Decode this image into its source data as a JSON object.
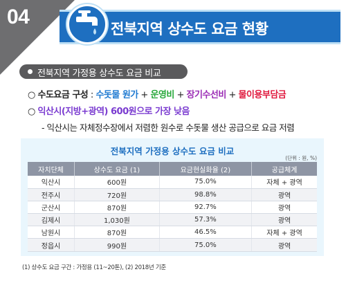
{
  "corner": {
    "number": "04"
  },
  "banner": {
    "title": "전북지역 상수도 요금 현황"
  },
  "section": {
    "label": "전북지역 가정용 상수도 요금 비교"
  },
  "bullet1": {
    "marker": "○",
    "lead": "수도요금 구성",
    "colon": " : ",
    "part1": "수돗물 원가",
    "plus1": " + ",
    "part2": "운영비",
    "plus2": " + ",
    "part3": "장기수선비",
    "plus3": " + ",
    "part4": "물이용부담금"
  },
  "bullet2": {
    "marker": "○",
    "text": "익산시(지방+광역) 600원으로 가장 낮음"
  },
  "sub": {
    "text": "- 익산시는 자체정수장에서 저렴한 원수로 수돗물 생산 공급으로 요금 저렴"
  },
  "table": {
    "title": "전북지역 가정용 상수도 요금 비교",
    "unit": "(단위 : 원, %)",
    "headers": [
      "자치단체",
      "상수도 요금 (1)",
      "요금현실화율 (2)",
      "공급체계"
    ],
    "rows": [
      [
        "익산시",
        "600원",
        "75.0%",
        "자체 + 광역"
      ],
      [
        "전주시",
        "720원",
        "98.8%",
        "광역"
      ],
      [
        "군산시",
        "870원",
        "92.7%",
        "광역"
      ],
      [
        "김제시",
        "1,030원",
        "57.3%",
        "광역"
      ],
      [
        "남원시",
        "870원",
        "46.5%",
        "자체 + 광역"
      ],
      [
        "정읍시",
        "990원",
        "75.0%",
        "광역"
      ]
    ]
  },
  "footnote": "(1) 상수도 요금 구간 : 가정용 (11~20톤), (2) 2018년 기준",
  "colors": {
    "brand_blue": "#1e6fc0",
    "corner_gray": "#6e6e70",
    "panel_bg": "#e9f6fd"
  },
  "icons": {
    "banner_icon": "water-faucet-icon"
  }
}
